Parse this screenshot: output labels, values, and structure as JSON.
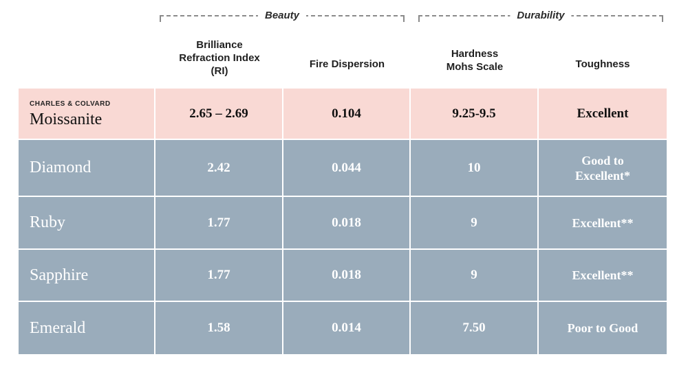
{
  "groups": {
    "beauty": "Beauty",
    "durability": "Durability"
  },
  "columns": {
    "brilliance": "Brilliance\nRefraction Index\n(RI)",
    "fire": "Fire Dispersion",
    "hardness": "Hardness\nMohs Scale",
    "toughness": "Toughness"
  },
  "highlight": {
    "brand": "CHARLES & COLVARD",
    "name": "Moissanite",
    "brilliance": "2.65 – 2.69",
    "fire": "0.104",
    "hardness": "9.25-9.5",
    "toughness": "Excellent"
  },
  "rows": [
    {
      "name": "Diamond",
      "brilliance": "2.42",
      "fire": "0.044",
      "hardness": "10",
      "toughness": "Good to\nExcellent*"
    },
    {
      "name": "Ruby",
      "brilliance": "1.77",
      "fire": "0.018",
      "hardness": "9",
      "toughness": "Excellent**"
    },
    {
      "name": "Sapphire",
      "brilliance": "1.77",
      "fire": "0.018",
      "hardness": "9",
      "toughness": "Excellent**"
    },
    {
      "name": "Emerald",
      "brilliance": "1.58",
      "fire": "0.014",
      "hardness": "7.50",
      "toughness": "Poor to Good"
    }
  ],
  "colors": {
    "highlight_bg": "#f9d9d4",
    "row_bg": "#9aacbb"
  }
}
